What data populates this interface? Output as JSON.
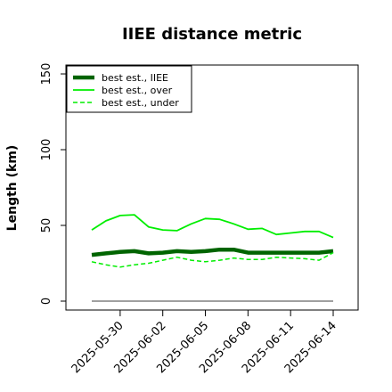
{
  "chart_data": {
    "type": "line",
    "title": "IIEE distance metric",
    "xlabel": "",
    "ylabel": "Length (km)",
    "ylim": [
      0,
      150
    ],
    "yticks": [
      0,
      50,
      100,
      150
    ],
    "x_dates": [
      "2025-05-28",
      "2025-05-29",
      "2025-05-30",
      "2025-05-31",
      "2025-06-01",
      "2025-06-02",
      "2025-06-03",
      "2025-06-04",
      "2025-06-05",
      "2025-06-06",
      "2025-06-07",
      "2025-06-08",
      "2025-06-09",
      "2025-06-10",
      "2025-06-11",
      "2025-06-12",
      "2025-06-13",
      "2025-06-14"
    ],
    "xtick_labels": [
      "2025-05-30",
      "2025-06-02",
      "2025-06-05",
      "2025-06-08",
      "2025-06-11",
      "2025-06-14"
    ],
    "legend_position": "top-left",
    "grid": false,
    "series": [
      {
        "name": "best est., IIEE",
        "style": "solid-thick",
        "color": "#006400",
        "values": [
          30.5,
          31.5,
          32.5,
          33,
          31.5,
          32,
          33,
          32.5,
          33,
          34,
          34,
          32,
          32,
          32,
          32,
          32,
          32,
          33
        ]
      },
      {
        "name": "best est., over",
        "style": "solid",
        "color": "#00ee00",
        "values": [
          47,
          53,
          56.5,
          57,
          49,
          47,
          46.5,
          51,
          54.5,
          54,
          51,
          47.5,
          48,
          44,
          45,
          46,
          46,
          42
        ]
      },
      {
        "name": "best est., under",
        "style": "dashed",
        "color": "#00ee00",
        "values": [
          26,
          24,
          22.5,
          24,
          25,
          27,
          29,
          27,
          26,
          27,
          28.5,
          27.5,
          27.5,
          29,
          28.5,
          28,
          27,
          32
        ]
      },
      {
        "name": "",
        "style": "reference",
        "color": "#808080",
        "values": [
          0,
          0,
          0,
          0,
          0,
          0,
          0,
          0,
          0,
          0,
          0,
          0,
          0,
          0,
          0,
          0,
          0,
          0
        ]
      }
    ]
  }
}
